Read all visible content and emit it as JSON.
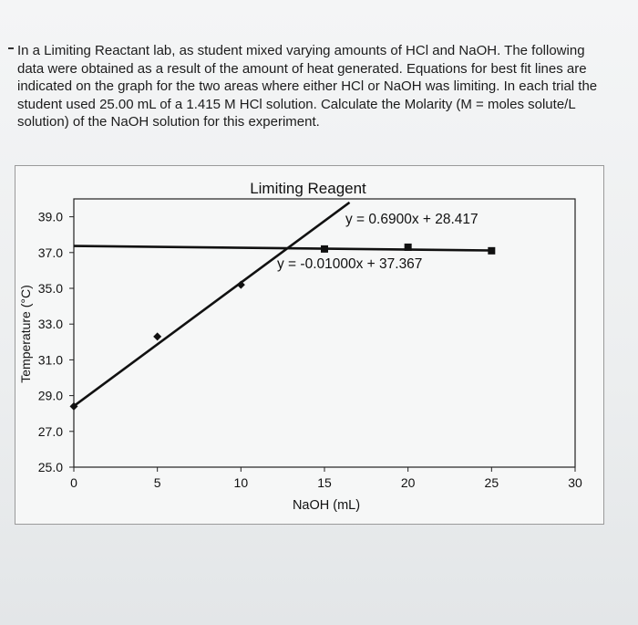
{
  "question": {
    "text": "In a Limiting Reactant lab, as student mixed varying amounts of HCl and NaOH. The following data were obtained as a result of the amount of heat generated. Equations for best fit lines are indicated on the graph for the two areas where either HCl or NaOH was limiting. In each trial the student used 25.00 mL of a 1.415 M HCl solution. Calculate the Molarity (M = moles solute/L solution) of the NaOH solution for this experiment."
  },
  "chart_data": {
    "type": "scatter",
    "title": "Limiting Reagent",
    "xlabel": "NaOH (mL)",
    "ylabel": "Temperature (°C)",
    "xlim": [
      0,
      30
    ],
    "ylim": [
      25.0,
      40.0
    ],
    "x_ticks": [
      0,
      5,
      10,
      15,
      20,
      25,
      30
    ],
    "y_ticks": [
      "25.0",
      "27.0",
      "29.0",
      "31.0",
      "33.0",
      "35.0",
      "37.0",
      "39.0"
    ],
    "grid": false,
    "series": [
      {
        "marker": "diamond",
        "points": [
          [
            0,
            28.4
          ],
          [
            5,
            32.3
          ],
          [
            10,
            35.2
          ]
        ],
        "fit": {
          "slope": 0.69,
          "intercept": 28.417,
          "x_range": [
            0,
            16.5
          ]
        },
        "equation": "y = 0.6900x + 28.417"
      },
      {
        "marker": "square",
        "points": [
          [
            15,
            37.2
          ],
          [
            20,
            37.3
          ],
          [
            25,
            37.1
          ]
        ],
        "fit": {
          "slope": -0.01,
          "intercept": 37.367,
          "x_range": [
            0,
            25
          ]
        },
        "equation": "y = -0.01000x + 37.367"
      }
    ]
  }
}
